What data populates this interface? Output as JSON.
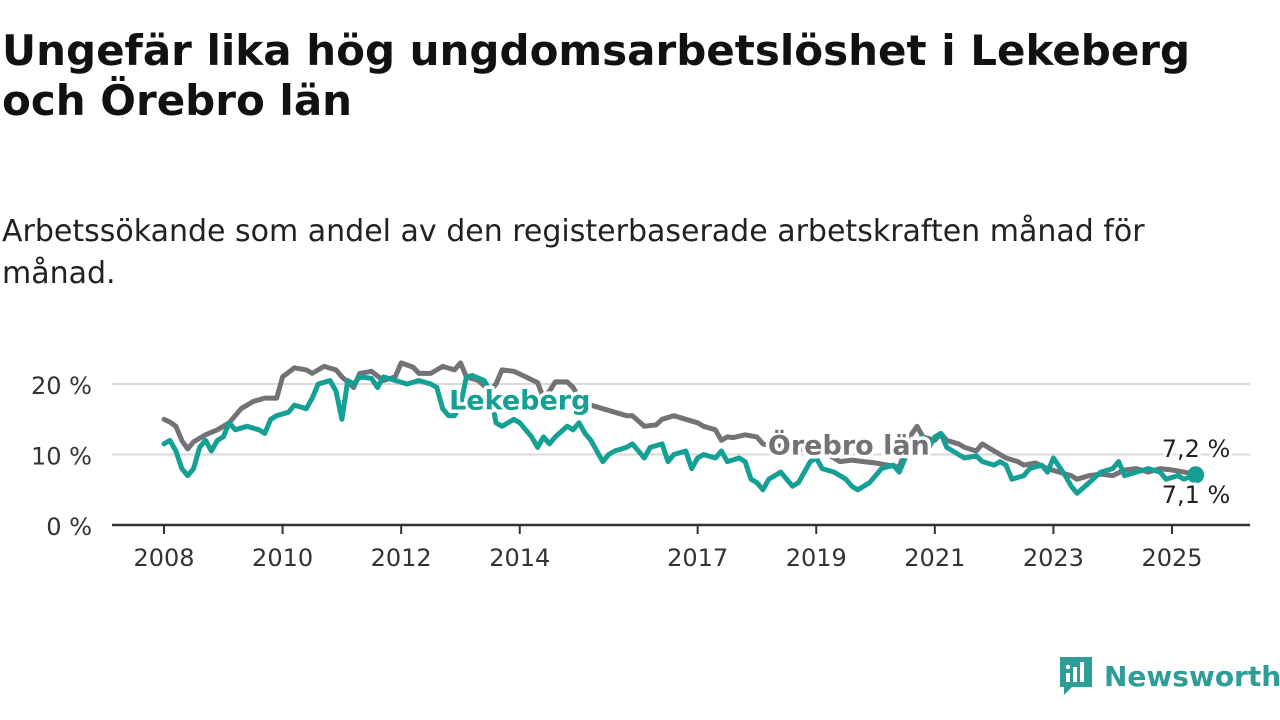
{
  "title": "Ungefär lika hög ungdomsarbetslöshet i Lekeberg och Örebro län",
  "subtitle": "Arbetssökande som andel av den registerbaserade arbetskraften månad för månad.",
  "brand": {
    "name": "Newsworthy",
    "icon": "newsworthy-chart-icon",
    "color": "#2e9c98"
  },
  "colors": {
    "lekeberg": "#14a094",
    "orebro": "#737276",
    "grid": "#d9d9d9",
    "axis": "#333333"
  },
  "chart_data": {
    "type": "line",
    "y_ticks": [
      0,
      10,
      20
    ],
    "y_tick_labels": [
      "0 %",
      "10 %",
      "20 %"
    ],
    "ylim": [
      0,
      22
    ],
    "x_ticks": [
      2008,
      2010,
      2012,
      2014,
      2017,
      2019,
      2021,
      2023,
      2025
    ],
    "x_tick_labels": [
      "2008",
      "2010",
      "2012",
      "2014",
      "2017",
      "2019",
      "2021",
      "2023",
      "2025"
    ],
    "xlim": [
      2007.55,
      2026.3
    ],
    "grid": true,
    "series": [
      {
        "name": "Örebro län",
        "color": "#737276",
        "end_label": "7,2 %",
        "points": [
          [
            2008.0,
            15.0
          ],
          [
            2008.1,
            14.6
          ],
          [
            2008.2,
            14.0
          ],
          [
            2008.3,
            12.0
          ],
          [
            2008.4,
            10.8
          ],
          [
            2008.5,
            11.8
          ],
          [
            2008.7,
            12.8
          ],
          [
            2008.9,
            13.5
          ],
          [
            2009.1,
            14.5
          ],
          [
            2009.3,
            16.5
          ],
          [
            2009.5,
            17.5
          ],
          [
            2009.7,
            18.0
          ],
          [
            2009.9,
            18.0
          ],
          [
            2010.0,
            21.0
          ],
          [
            2010.2,
            22.3
          ],
          [
            2010.4,
            22.0
          ],
          [
            2010.5,
            21.5
          ],
          [
            2010.7,
            22.5
          ],
          [
            2010.9,
            22.0
          ],
          [
            2011.0,
            21.0
          ],
          [
            2011.2,
            19.5
          ],
          [
            2011.3,
            21.5
          ],
          [
            2011.5,
            21.8
          ],
          [
            2011.7,
            20.5
          ],
          [
            2011.9,
            21.0
          ],
          [
            2012.0,
            23.0
          ],
          [
            2012.2,
            22.4
          ],
          [
            2012.3,
            21.5
          ],
          [
            2012.5,
            21.5
          ],
          [
            2012.7,
            22.5
          ],
          [
            2012.9,
            22.0
          ],
          [
            2013.0,
            23.0
          ],
          [
            2013.1,
            21.0
          ],
          [
            2013.3,
            20.5
          ],
          [
            2013.5,
            19.0
          ],
          [
            2013.6,
            20.0
          ],
          [
            2013.7,
            22.0
          ],
          [
            2013.9,
            21.8
          ],
          [
            2014.1,
            21.0
          ],
          [
            2014.3,
            20.2
          ],
          [
            2014.4,
            18.0
          ],
          [
            2014.5,
            19.0
          ],
          [
            2014.6,
            20.3
          ],
          [
            2014.8,
            20.3
          ],
          [
            2014.9,
            19.5
          ],
          [
            2015.0,
            18.0
          ],
          [
            2015.2,
            17.0
          ],
          [
            2015.4,
            16.5
          ],
          [
            2015.6,
            16.0
          ],
          [
            2015.8,
            15.5
          ],
          [
            2015.9,
            15.5
          ],
          [
            2016.1,
            14.0
          ],
          [
            2016.3,
            14.2
          ],
          [
            2016.4,
            15.0
          ],
          [
            2016.6,
            15.5
          ],
          [
            2016.8,
            15.0
          ],
          [
            2017.0,
            14.5
          ],
          [
            2017.1,
            14.0
          ],
          [
            2017.3,
            13.5
          ],
          [
            2017.4,
            12.0
          ],
          [
            2017.5,
            12.5
          ],
          [
            2017.6,
            12.4
          ],
          [
            2017.8,
            12.8
          ],
          [
            2018.0,
            12.5
          ],
          [
            2018.1,
            11.5
          ],
          [
            2018.3,
            11.0
          ],
          [
            2018.5,
            11.5
          ],
          [
            2018.7,
            11.0
          ],
          [
            2018.9,
            10.2
          ],
          [
            2019.0,
            10.0
          ],
          [
            2019.2,
            10.0
          ],
          [
            2019.4,
            9.0
          ],
          [
            2019.6,
            9.2
          ],
          [
            2019.8,
            9.0
          ],
          [
            2020.0,
            8.8
          ],
          [
            2020.2,
            8.5
          ],
          [
            2020.4,
            8.2
          ],
          [
            2020.6,
            12.8
          ],
          [
            2020.7,
            14.0
          ],
          [
            2020.8,
            12.5
          ],
          [
            2021.0,
            12.0
          ],
          [
            2021.1,
            13.0
          ],
          [
            2021.2,
            12.0
          ],
          [
            2021.4,
            11.5
          ],
          [
            2021.5,
            11.0
          ],
          [
            2021.7,
            10.5
          ],
          [
            2021.8,
            11.5
          ],
          [
            2022.0,
            10.5
          ],
          [
            2022.2,
            9.5
          ],
          [
            2022.4,
            9.0
          ],
          [
            2022.5,
            8.5
          ],
          [
            2022.7,
            8.8
          ],
          [
            2022.9,
            8.0
          ],
          [
            2023.1,
            7.5
          ],
          [
            2023.3,
            7.0
          ],
          [
            2023.4,
            6.5
          ],
          [
            2023.6,
            7.0
          ],
          [
            2023.8,
            7.2
          ],
          [
            2024.0,
            7.0
          ],
          [
            2024.2,
            7.8
          ],
          [
            2024.4,
            8.0
          ],
          [
            2024.6,
            7.5
          ],
          [
            2024.8,
            8.0
          ],
          [
            2025.0,
            7.8
          ],
          [
            2025.2,
            7.5
          ],
          [
            2025.4,
            7.2
          ]
        ]
      },
      {
        "name": "Lekeberg",
        "color": "#14a094",
        "end_label": "7,1 %",
        "points": [
          [
            2008.0,
            11.5
          ],
          [
            2008.1,
            12.0
          ],
          [
            2008.2,
            10.5
          ],
          [
            2008.3,
            8.0
          ],
          [
            2008.4,
            7.0
          ],
          [
            2008.5,
            8.0
          ],
          [
            2008.6,
            11.0
          ],
          [
            2008.7,
            12.0
          ],
          [
            2008.8,
            10.5
          ],
          [
            2008.9,
            12.0
          ],
          [
            2009.0,
            12.5
          ],
          [
            2009.1,
            14.5
          ],
          [
            2009.2,
            13.5
          ],
          [
            2009.4,
            14.0
          ],
          [
            2009.6,
            13.5
          ],
          [
            2009.7,
            13.0
          ],
          [
            2009.8,
            15.0
          ],
          [
            2009.9,
            15.5
          ],
          [
            2010.1,
            16.0
          ],
          [
            2010.2,
            17.0
          ],
          [
            2010.4,
            16.5
          ],
          [
            2010.5,
            18.0
          ],
          [
            2010.6,
            20.0
          ],
          [
            2010.8,
            20.5
          ],
          [
            2010.9,
            19.0
          ],
          [
            2011.0,
            15.0
          ],
          [
            2011.1,
            20.5
          ],
          [
            2011.2,
            20.0
          ],
          [
            2011.3,
            21.0
          ],
          [
            2011.5,
            20.8
          ],
          [
            2011.6,
            19.5
          ],
          [
            2011.7,
            21.0
          ],
          [
            2011.9,
            20.5
          ],
          [
            2012.1,
            20.0
          ],
          [
            2012.3,
            20.5
          ],
          [
            2012.5,
            20.0
          ],
          [
            2012.6,
            19.5
          ],
          [
            2012.7,
            16.5
          ],
          [
            2012.8,
            15.5
          ],
          [
            2012.9,
            15.5
          ],
          [
            2013.0,
            17.0
          ],
          [
            2013.1,
            21.0
          ],
          [
            2013.2,
            21.2
          ],
          [
            2013.4,
            20.5
          ],
          [
            2013.5,
            19.0
          ],
          [
            2013.6,
            14.5
          ],
          [
            2013.7,
            14.0
          ],
          [
            2013.9,
            15.0
          ],
          [
            2014.0,
            14.5
          ],
          [
            2014.1,
            13.5
          ],
          [
            2014.2,
            12.5
          ],
          [
            2014.3,
            11.0
          ],
          [
            2014.4,
            12.5
          ],
          [
            2014.5,
            11.5
          ],
          [
            2014.6,
            12.5
          ],
          [
            2014.8,
            14.0
          ],
          [
            2014.9,
            13.5
          ],
          [
            2015.0,
            14.5
          ],
          [
            2015.1,
            13.0
          ],
          [
            2015.2,
            12.0
          ],
          [
            2015.3,
            10.5
          ],
          [
            2015.4,
            9.0
          ],
          [
            2015.5,
            10.0
          ],
          [
            2015.6,
            10.5
          ],
          [
            2015.8,
            11.0
          ],
          [
            2015.9,
            11.5
          ],
          [
            2016.0,
            10.5
          ],
          [
            2016.1,
            9.5
          ],
          [
            2016.2,
            11.0
          ],
          [
            2016.4,
            11.5
          ],
          [
            2016.5,
            9.0
          ],
          [
            2016.6,
            10.0
          ],
          [
            2016.8,
            10.5
          ],
          [
            2016.9,
            8.0
          ],
          [
            2017.0,
            9.5
          ],
          [
            2017.1,
            10.0
          ],
          [
            2017.3,
            9.5
          ],
          [
            2017.4,
            10.5
          ],
          [
            2017.5,
            9.0
          ],
          [
            2017.7,
            9.5
          ],
          [
            2017.8,
            9.0
          ],
          [
            2017.9,
            6.5
          ],
          [
            2018.0,
            6.0
          ],
          [
            2018.1,
            5.0
          ],
          [
            2018.2,
            6.5
          ],
          [
            2018.4,
            7.5
          ],
          [
            2018.5,
            6.5
          ],
          [
            2018.6,
            5.5
          ],
          [
            2018.7,
            6.0
          ],
          [
            2018.9,
            9.0
          ],
          [
            2019.0,
            9.5
          ],
          [
            2019.1,
            8.0
          ],
          [
            2019.3,
            7.5
          ],
          [
            2019.5,
            6.5
          ],
          [
            2019.6,
            5.5
          ],
          [
            2019.7,
            5.0
          ],
          [
            2019.9,
            6.0
          ],
          [
            2020.1,
            8.0
          ],
          [
            2020.3,
            8.5
          ],
          [
            2020.4,
            7.5
          ],
          [
            2020.6,
            11.5
          ],
          [
            2020.8,
            12.5
          ],
          [
            2020.9,
            11.0
          ],
          [
            2021.0,
            12.5
          ],
          [
            2021.1,
            13.0
          ],
          [
            2021.2,
            11.0
          ],
          [
            2021.4,
            10.0
          ],
          [
            2021.5,
            9.5
          ],
          [
            2021.7,
            9.8
          ],
          [
            2021.8,
            9.0
          ],
          [
            2022.0,
            8.5
          ],
          [
            2022.1,
            9.0
          ],
          [
            2022.2,
            8.5
          ],
          [
            2022.3,
            6.5
          ],
          [
            2022.5,
            7.0
          ],
          [
            2022.6,
            8.0
          ],
          [
            2022.8,
            8.5
          ],
          [
            2022.9,
            7.5
          ],
          [
            2023.0,
            9.5
          ],
          [
            2023.2,
            7.0
          ],
          [
            2023.3,
            5.5
          ],
          [
            2023.4,
            4.5
          ],
          [
            2023.6,
            6.0
          ],
          [
            2023.8,
            7.5
          ],
          [
            2024.0,
            8.0
          ],
          [
            2024.1,
            9.0
          ],
          [
            2024.2,
            7.0
          ],
          [
            2024.4,
            7.5
          ],
          [
            2024.6,
            8.0
          ],
          [
            2024.8,
            7.5
          ],
          [
            2024.9,
            6.5
          ],
          [
            2025.1,
            7.0
          ],
          [
            2025.2,
            6.5
          ],
          [
            2025.4,
            7.1
          ]
        ]
      }
    ],
    "annotations": [
      {
        "text": "Lekeberg",
        "series": "Lekeberg",
        "at": [
          2014.0,
          16.4
        ]
      },
      {
        "text": "Örebro län",
        "series": "Örebro län",
        "at": [
          2019.55,
          10.0
        ]
      }
    ]
  }
}
